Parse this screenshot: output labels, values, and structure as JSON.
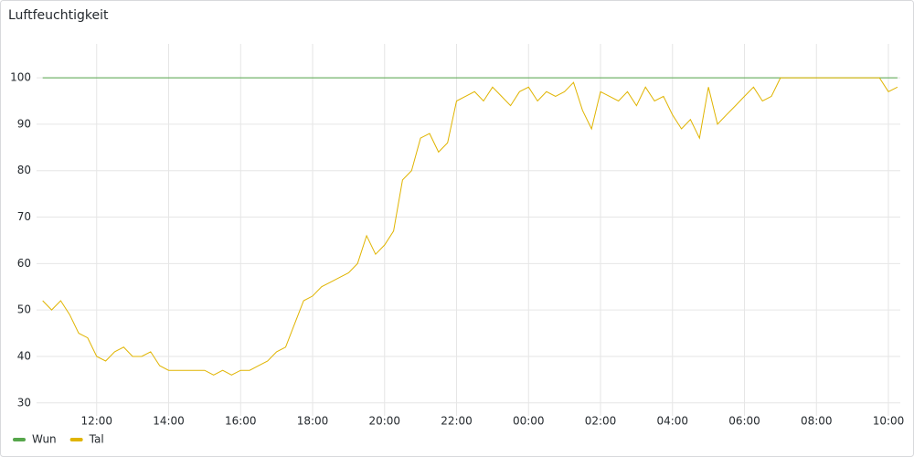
{
  "chart_data": {
    "type": "line",
    "title": "Luftfeuchtigkeit",
    "x": [
      10.5,
      10.75,
      11,
      11.25,
      11.5,
      11.75,
      12,
      12.25,
      12.5,
      12.75,
      13,
      13.25,
      13.5,
      13.75,
      14,
      14.25,
      14.5,
      14.75,
      15,
      15.25,
      15.5,
      15.75,
      16,
      16.25,
      16.5,
      16.75,
      17,
      17.25,
      17.5,
      17.75,
      18,
      18.25,
      18.5,
      18.75,
      19,
      19.25,
      19.5,
      19.75,
      20,
      20.25,
      20.5,
      20.75,
      21,
      21.25,
      21.5,
      21.75,
      22,
      22.25,
      22.5,
      22.75,
      23,
      23.25,
      23.5,
      23.75,
      24,
      24.25,
      24.5,
      24.75,
      25,
      25.25,
      25.5,
      25.75,
      26,
      26.25,
      26.5,
      26.75,
      27,
      27.25,
      27.5,
      27.75,
      28,
      28.25,
      28.5,
      28.75,
      29,
      29.25,
      29.5,
      29.75,
      30,
      30.25,
      30.5,
      30.75,
      31,
      31.25,
      31.5,
      31.75,
      32,
      32.25,
      32.5,
      32.75,
      33,
      33.25,
      33.5,
      33.75,
      34,
      34.25
    ],
    "series": [
      {
        "name": "Wun",
        "color": "#56a64b",
        "values": [
          100,
          100,
          100,
          100,
          100,
          100,
          100,
          100,
          100,
          100,
          100,
          100,
          100,
          100,
          100,
          100,
          100,
          100,
          100,
          100,
          100,
          100,
          100,
          100,
          100,
          100,
          100,
          100,
          100,
          100,
          100,
          100,
          100,
          100,
          100,
          100,
          100,
          100,
          100,
          100,
          100,
          100,
          100,
          100,
          100,
          100,
          100,
          100,
          100,
          100,
          100,
          100,
          100,
          100,
          100,
          100,
          100,
          100,
          100,
          100,
          100,
          100,
          100,
          100,
          100,
          100,
          100,
          100,
          100,
          100,
          100,
          100,
          100,
          100,
          100,
          100,
          100,
          100,
          100,
          100,
          100,
          100,
          100,
          100,
          100,
          100,
          100,
          100,
          100,
          100,
          100,
          100,
          100,
          100,
          100,
          100
        ]
      },
      {
        "name": "Tal",
        "color": "#e0b400",
        "values": [
          52,
          50,
          52,
          49,
          45,
          44,
          40,
          39,
          41,
          42,
          40,
          40,
          41,
          38,
          37,
          37,
          37,
          37,
          37,
          36,
          37,
          36,
          37,
          37,
          38,
          39,
          41,
          42,
          47,
          52,
          53,
          55,
          56,
          57,
          58,
          60,
          66,
          62,
          64,
          67,
          78,
          80,
          87,
          88,
          84,
          86,
          95,
          96,
          97,
          95,
          98,
          96,
          94,
          97,
          98,
          95,
          97,
          96,
          97,
          99,
          93,
          89,
          97,
          96,
          95,
          97,
          94,
          98,
          95,
          96,
          92,
          89,
          91,
          87,
          98,
          90,
          92,
          94,
          96,
          98,
          95,
          96,
          100,
          100,
          100,
          100,
          100,
          100,
          100,
          100,
          100,
          100,
          100,
          100,
          97,
          98
        ]
      }
    ],
    "xlim": [
      10.33,
      34.33
    ],
    "xticks": [
      {
        "value": 12,
        "label": "12:00"
      },
      {
        "value": 14,
        "label": "14:00"
      },
      {
        "value": 16,
        "label": "16:00"
      },
      {
        "value": 18,
        "label": "18:00"
      },
      {
        "value": 20,
        "label": "20:00"
      },
      {
        "value": 22,
        "label": "22:00"
      },
      {
        "value": 24,
        "label": "00:00"
      },
      {
        "value": 26,
        "label": "02:00"
      },
      {
        "value": 28,
        "label": "04:00"
      },
      {
        "value": 30,
        "label": "06:00"
      },
      {
        "value": 32,
        "label": "08:00"
      },
      {
        "value": 34,
        "label": "10:00"
      }
    ],
    "ylim": [
      27.2,
      107.3
    ],
    "yticks": [
      30,
      40,
      50,
      60,
      70,
      80,
      90,
      100
    ],
    "grid": true,
    "legend": "bottom"
  }
}
